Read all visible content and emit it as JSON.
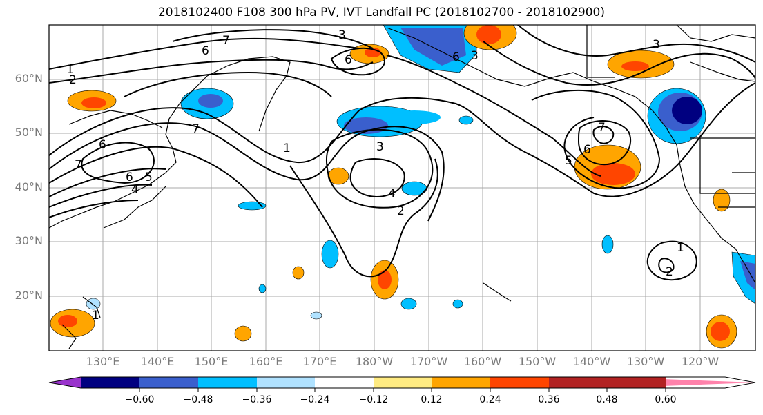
{
  "title": "2018102400 F108 300 hPa PV, IVT Landfall PC (2018102700 - 2018102900)",
  "lat_labels": [
    "60°N",
    "50°N",
    "40°N",
    "30°N",
    "20°N"
  ],
  "lon_labels": [
    "130°E",
    "140°E",
    "150°E",
    "160°E",
    "170°E",
    "180°W",
    "170°W",
    "160°W",
    "150°W",
    "140°W",
    "130°W",
    "120°W"
  ],
  "contour_labels": [
    "1",
    "2",
    "7",
    "6",
    "3",
    "6",
    "6",
    "3",
    "3",
    "7",
    "6",
    "5",
    "4",
    "6",
    "7",
    "1",
    "3",
    "4",
    "2",
    "7",
    "6",
    "5",
    "1",
    "2",
    "1"
  ],
  "colorbar": {
    "ticks": [
      "−0.60",
      "−0.48",
      "−0.36",
      "−0.24",
      "−0.12",
      "0.12",
      "0.24",
      "0.36",
      "0.48",
      "0.60"
    ],
    "colors": [
      "#9933cc",
      "#000080",
      "#3a5fcd",
      "#00bfff",
      "#b0e2ff",
      "#ffffff",
      "#ffeb82",
      "#ffa500",
      "#ff4500",
      "#b22222",
      "#ff82ab"
    ]
  }
}
